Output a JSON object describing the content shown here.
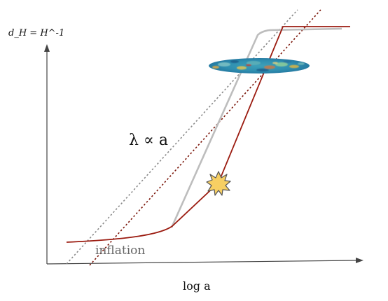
{
  "labels": {
    "y_axis": "d_H = H^-1",
    "x_axis": "log a",
    "lambda_relation": "λ ∝ a",
    "inflation": "inflation"
  },
  "icons": {
    "explosion": "big-bang-explosion-icon",
    "cmb": "cmb-map-icon"
  },
  "colors": {
    "axis": "#444444",
    "hubble_radius_inflation": "#9b1b10",
    "hubble_radius_alt": "#bdbdbd",
    "scale_line_gray": "#8a8a8a",
    "scale_line_red": "#7a1408",
    "explosion_fill": "#f7cf63",
    "cmb_base": "#2b8bb5"
  }
}
